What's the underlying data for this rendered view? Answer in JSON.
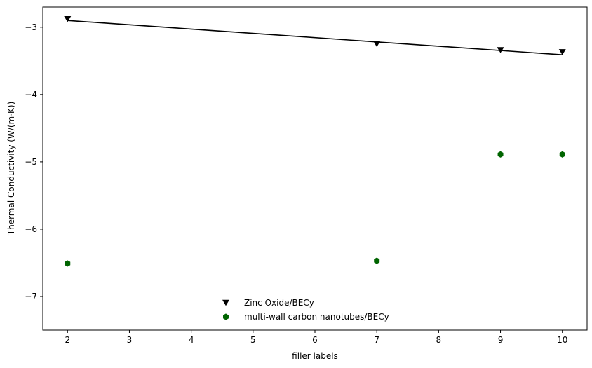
{
  "chart_data": {
    "type": "scatter",
    "title": "",
    "xlabel": "filler labels",
    "ylabel": "Thermal Conductivity (W/(m·K))",
    "xlim": [
      1.6,
      10.4
    ],
    "ylim": [
      -7.5,
      -2.7
    ],
    "xticks": [
      2,
      3,
      4,
      5,
      6,
      7,
      8,
      9,
      10
    ],
    "yticks": [
      -7,
      -6,
      -5,
      -4,
      -3
    ],
    "xtick_labels": [
      "2",
      "3",
      "4",
      "5",
      "6",
      "7",
      "8",
      "9",
      "10"
    ],
    "ytick_labels": [
      "−7",
      "−6",
      "−5",
      "−4",
      "−3"
    ],
    "grid": false,
    "legend_position": "lower-center",
    "series": [
      {
        "name": "Zinc Oxide/BECy",
        "marker": "triangle-down",
        "color": "#000000",
        "x": [
          2,
          7,
          9,
          10
        ],
        "y": [
          -2.88,
          -3.25,
          -3.34,
          -3.37
        ]
      },
      {
        "name": "multi-wall carbon nanotubes/BECy",
        "marker": "hexagon",
        "color": "#006400",
        "x": [
          2,
          7,
          9,
          10
        ],
        "y": [
          -6.51,
          -6.47,
          -4.89,
          -4.89
        ]
      }
    ],
    "fit_line": {
      "series": "Zinc Oxide/BECy",
      "color": "#000000",
      "x": [
        2,
        10
      ],
      "y": [
        -2.9,
        -3.41
      ]
    }
  }
}
